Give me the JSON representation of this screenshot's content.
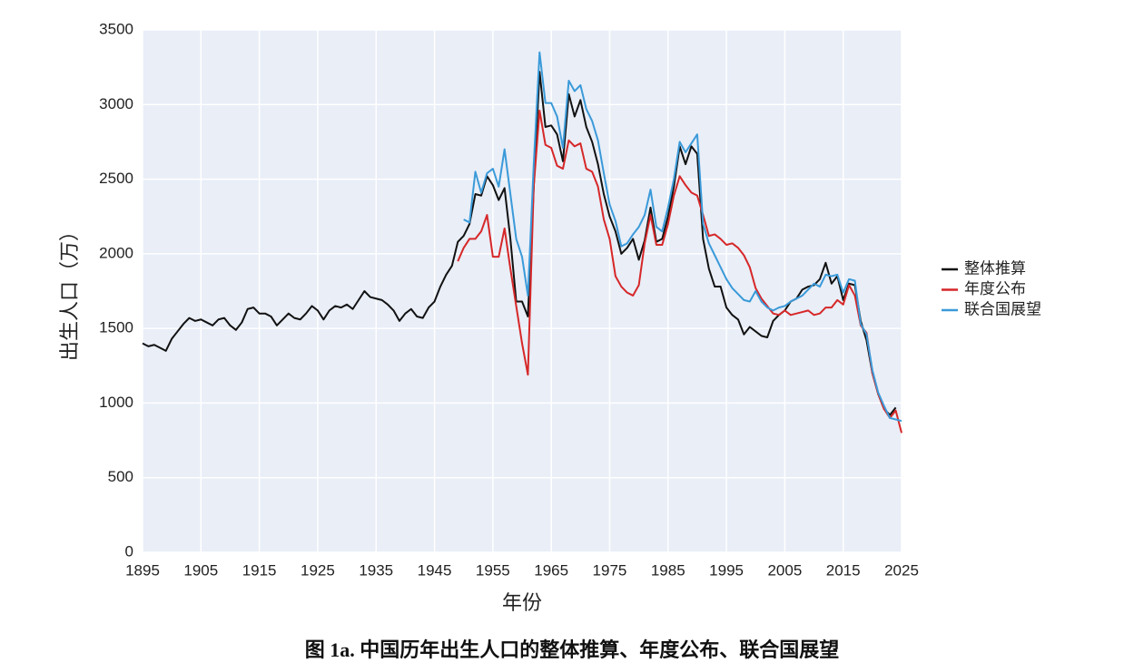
{
  "chart_data": {
    "type": "line",
    "caption": "图 1a. 中国历年出生人口的整体推算、年度公布、联合国展望",
    "x_label": "年份",
    "y_label": "出生人口（万）",
    "x": [
      1895,
      1896,
      1897,
      1898,
      1899,
      1900,
      1901,
      1902,
      1903,
      1904,
      1905,
      1906,
      1907,
      1908,
      1909,
      1910,
      1911,
      1912,
      1913,
      1914,
      1915,
      1916,
      1917,
      1918,
      1919,
      1920,
      1921,
      1922,
      1923,
      1924,
      1925,
      1926,
      1927,
      1928,
      1929,
      1930,
      1931,
      1932,
      1933,
      1934,
      1935,
      1936,
      1937,
      1938,
      1939,
      1940,
      1941,
      1942,
      1943,
      1944,
      1945,
      1946,
      1947,
      1948,
      1949,
      1950,
      1951,
      1952,
      1953,
      1954,
      1955,
      1956,
      1957,
      1958,
      1959,
      1960,
      1961,
      1962,
      1963,
      1964,
      1965,
      1966,
      1967,
      1968,
      1969,
      1970,
      1971,
      1972,
      1973,
      1974,
      1975,
      1976,
      1977,
      1978,
      1979,
      1980,
      1981,
      1982,
      1983,
      1984,
      1985,
      1986,
      1987,
      1988,
      1989,
      1990,
      1991,
      1992,
      1993,
      1994,
      1995,
      1996,
      1997,
      1998,
      1999,
      2000,
      2001,
      2002,
      2003,
      2004,
      2005,
      2006,
      2007,
      2008,
      2009,
      2010,
      2011,
      2012,
      2013,
      2014,
      2015,
      2016,
      2017,
      2018,
      2019,
      2020,
      2021,
      2022,
      2023,
      2024,
      2025
    ],
    "series": [
      {
        "name": "整体推算",
        "color": "#111111",
        "values": [
          1400,
          1380,
          1390,
          1370,
          1350,
          1430,
          1480,
          1530,
          1570,
          1550,
          1560,
          1540,
          1520,
          1560,
          1570,
          1520,
          1490,
          1540,
          1630,
          1640,
          1600,
          1600,
          1580,
          1520,
          1560,
          1600,
          1570,
          1560,
          1600,
          1650,
          1620,
          1560,
          1620,
          1650,
          1640,
          1660,
          1630,
          1690,
          1750,
          1710,
          1700,
          1690,
          1660,
          1620,
          1550,
          1600,
          1630,
          1580,
          1570,
          1640,
          1680,
          1780,
          1860,
          1920,
          2080,
          2120,
          2200,
          2400,
          2390,
          2520,
          2460,
          2360,
          2440,
          2100,
          1680,
          1680,
          1580,
          2450,
          3220,
          2850,
          2860,
          2800,
          2620,
          3070,
          2920,
          3030,
          2850,
          2750,
          2600,
          2400,
          2250,
          2150,
          2000,
          2040,
          2100,
          1960,
          2090,
          2310,
          2080,
          2100,
          2250,
          2450,
          2720,
          2600,
          2720,
          2670,
          2100,
          1900,
          1780,
          1780,
          1640,
          1590,
          1560,
          1460,
          1510,
          1480,
          1450,
          1440,
          1550,
          1590,
          1620,
          1680,
          1700,
          1760,
          1780,
          1790,
          1830,
          1940,
          1800,
          1850,
          1690,
          1800,
          1790,
          1550,
          1420,
          1200,
          1060,
          960,
          920,
          970,
          null
        ]
      },
      {
        "name": "年度公布",
        "color": "#d62728",
        "values": [
          null,
          null,
          null,
          null,
          null,
          null,
          null,
          null,
          null,
          null,
          null,
          null,
          null,
          null,
          null,
          null,
          null,
          null,
          null,
          null,
          null,
          null,
          null,
          null,
          null,
          null,
          null,
          null,
          null,
          null,
          null,
          null,
          null,
          null,
          null,
          null,
          null,
          null,
          null,
          null,
          null,
          null,
          null,
          null,
          null,
          null,
          null,
          null,
          null,
          null,
          null,
          null,
          null,
          null,
          1950,
          2040,
          2100,
          2100,
          2150,
          2260,
          1980,
          1980,
          2170,
          1900,
          1650,
          1400,
          1190,
          2450,
          2960,
          2730,
          2710,
          2590,
          2570,
          2760,
          2720,
          2740,
          2570,
          2550,
          2450,
          2230,
          2100,
          1850,
          1780,
          1740,
          1720,
          1790,
          2070,
          2260,
          2060,
          2060,
          2200,
          2390,
          2520,
          2460,
          2410,
          2390,
          2260,
          2120,
          2130,
          2100,
          2060,
          2070,
          2040,
          1990,
          1910,
          1770,
          1700,
          1650,
          1600,
          1590,
          1620,
          1590,
          1600,
          1610,
          1620,
          1590,
          1600,
          1640,
          1640,
          1690,
          1660,
          1790,
          1720,
          1520,
          1470,
          1200,
          1060,
          960,
          900,
          950,
          800
        ]
      },
      {
        "name": "联合国展望",
        "color": "#3a9ad9",
        "values": [
          null,
          null,
          null,
          null,
          null,
          null,
          null,
          null,
          null,
          null,
          null,
          null,
          null,
          null,
          null,
          null,
          null,
          null,
          null,
          null,
          null,
          null,
          null,
          null,
          null,
          null,
          null,
          null,
          null,
          null,
          null,
          null,
          null,
          null,
          null,
          null,
          null,
          null,
          null,
          null,
          null,
          null,
          null,
          null,
          null,
          null,
          null,
          null,
          null,
          null,
          null,
          null,
          null,
          null,
          null,
          2230,
          2210,
          2550,
          2410,
          2540,
          2570,
          2450,
          2700,
          2400,
          2100,
          1980,
          1720,
          2600,
          3350,
          3010,
          3010,
          2920,
          2710,
          3160,
          3090,
          3130,
          2970,
          2890,
          2760,
          2540,
          2330,
          2220,
          2050,
          2070,
          2130,
          2180,
          2260,
          2430,
          2180,
          2150,
          2310,
          2500,
          2750,
          2680,
          2740,
          2800,
          2200,
          2070,
          1990,
          1910,
          1830,
          1770,
          1730,
          1690,
          1680,
          1750,
          1680,
          1640,
          1620,
          1640,
          1650,
          1680,
          1700,
          1720,
          1760,
          1800,
          1780,
          1860,
          1850,
          1860,
          1740,
          1830,
          1820,
          1530,
          1460,
          1220,
          1070,
          980,
          900,
          890,
          880
        ]
      }
    ],
    "xlim": [
      1895,
      2025
    ],
    "xticks": [
      1895,
      1905,
      1915,
      1925,
      1935,
      1945,
      1955,
      1965,
      1975,
      1985,
      1995,
      2005,
      2015,
      2025
    ],
    "ylim": [
      0,
      3500
    ],
    "yticks": [
      0,
      500,
      1000,
      1500,
      2000,
      2500,
      3000,
      3500
    ],
    "grid": true,
    "legend": "right"
  }
}
